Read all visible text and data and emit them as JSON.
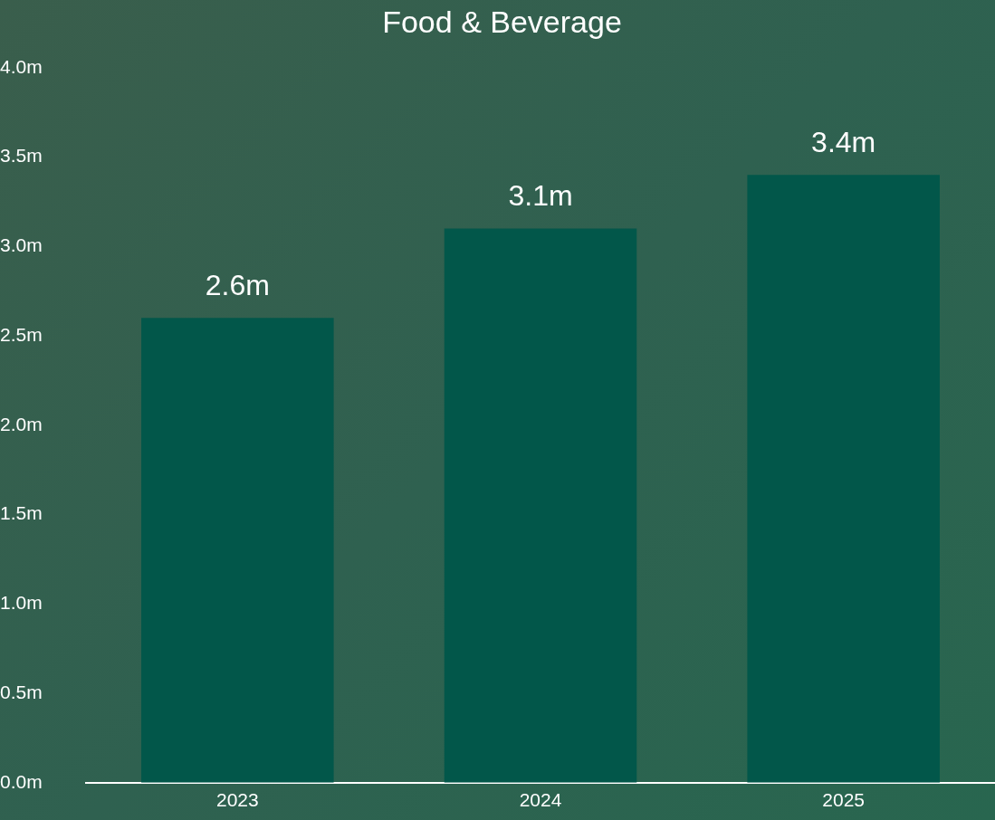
{
  "chart_data": {
    "type": "bar",
    "title": "Food & Beverage",
    "categories": [
      "2023",
      "2024",
      "2025"
    ],
    "values": [
      2.6,
      3.1,
      3.4
    ],
    "value_labels": [
      "2.6m",
      "3.1m",
      "3.4m"
    ],
    "color": "#02574a",
    "ylim": [
      0,
      4
    ],
    "yticks": [
      {
        "value": 0,
        "label": "0.0m"
      },
      {
        "value": 0.5,
        "label": "0.5m"
      },
      {
        "value": 1,
        "label": "1.0m"
      },
      {
        "value": 1.5,
        "label": "1.5m"
      },
      {
        "value": 2,
        "label": "2.0m"
      },
      {
        "value": 2.5,
        "label": "2.5m"
      },
      {
        "value": 3,
        "label": "3.0m"
      },
      {
        "value": 3.5,
        "label": "3.5m"
      },
      {
        "value": 4,
        "label": "4.0m"
      }
    ],
    "grid": false,
    "legend": false
  }
}
